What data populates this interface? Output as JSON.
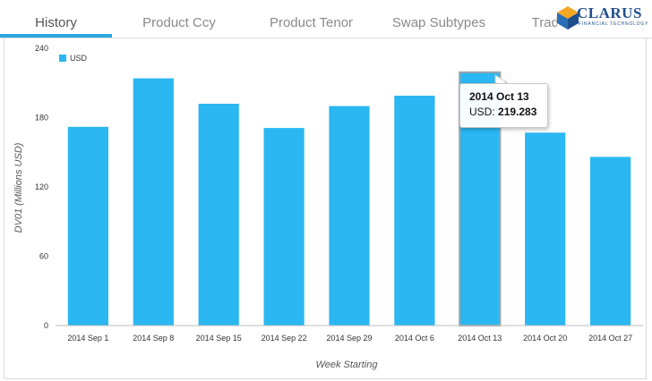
{
  "tabs": [
    {
      "label": "History",
      "active": true
    },
    {
      "label": "Product Ccy",
      "active": false
    },
    {
      "label": "Product Tenor",
      "active": false
    },
    {
      "label": "Swap Subtypes",
      "active": false
    },
    {
      "label": "Trade",
      "active": false
    }
  ],
  "logo": {
    "name": "CLARUS",
    "tagline": "FINANCIAL TECHNOLOGY"
  },
  "colors": {
    "bar": "#2ab7f2",
    "bar_highlight": "#2ab7f2",
    "accent": "#2ba7e0"
  },
  "tooltip": {
    "title": "2014 Oct 13",
    "series_label": "USD:",
    "value": "219.283"
  },
  "chart_data": {
    "type": "bar",
    "categories": [
      "2014 Sep 1",
      "2014 Sep 8",
      "2014 Sep 15",
      "2014 Sep 22",
      "2014 Sep 29",
      "2014 Oct 6",
      "2014 Oct 13",
      "2014 Oct 20",
      "2014 Oct 27"
    ],
    "series": [
      {
        "name": "USD",
        "values": [
          172,
          214,
          192,
          171,
          190,
          199,
          219.283,
          167,
          146
        ]
      }
    ],
    "xlabel": "Week Starting",
    "ylabel": "DV01 (Millions USD)",
    "ylim": [
      0,
      240
    ],
    "yticks": [
      0,
      60,
      120,
      180,
      240
    ],
    "grid": false,
    "legend": "top-left",
    "highlighted_index": 6
  }
}
